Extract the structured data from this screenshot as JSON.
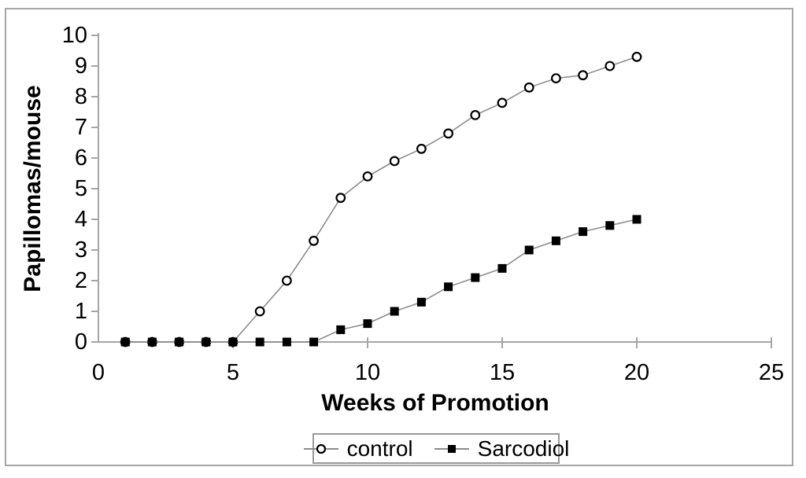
{
  "chart_data": {
    "type": "line",
    "title": "",
    "xlabel": "Weeks of Promotion",
    "ylabel": "Papillomas/mouse",
    "xlim": [
      0,
      25
    ],
    "ylim": [
      0,
      10
    ],
    "xticks": [
      0,
      5,
      10,
      15,
      20,
      25
    ],
    "yticks": [
      0,
      1,
      2,
      3,
      4,
      5,
      6,
      7,
      8,
      9,
      10
    ],
    "grid": false,
    "legend_position": "bottom-center",
    "x": [
      1,
      2,
      3,
      4,
      5,
      6,
      7,
      8,
      9,
      10,
      11,
      12,
      13,
      14,
      15,
      16,
      17,
      18,
      19,
      20
    ],
    "series": [
      {
        "name": "control",
        "marker": "open-circle",
        "marker_color": "#000000",
        "line_color": "#8c8c8c",
        "values": [
          0,
          0,
          0,
          0,
          0,
          1.0,
          2.0,
          3.3,
          4.7,
          5.4,
          5.9,
          6.3,
          6.8,
          7.4,
          7.8,
          8.3,
          8.6,
          8.7,
          9.0,
          9.3
        ]
      },
      {
        "name": "Sarcodiol",
        "marker": "filled-square",
        "marker_color": "#000000",
        "line_color": "#8c8c8c",
        "values": [
          0,
          0,
          0,
          0,
          0,
          0,
          0,
          0,
          0.4,
          0.6,
          1.0,
          1.3,
          1.8,
          2.1,
          2.4,
          3.0,
          3.3,
          3.6,
          3.8,
          4.0
        ]
      }
    ]
  },
  "colors": {
    "axis": "#a6a6a6",
    "frame_border": "#a6a6a6",
    "legend_border": "#999999",
    "text": "#000000",
    "background": "#ffffff"
  }
}
